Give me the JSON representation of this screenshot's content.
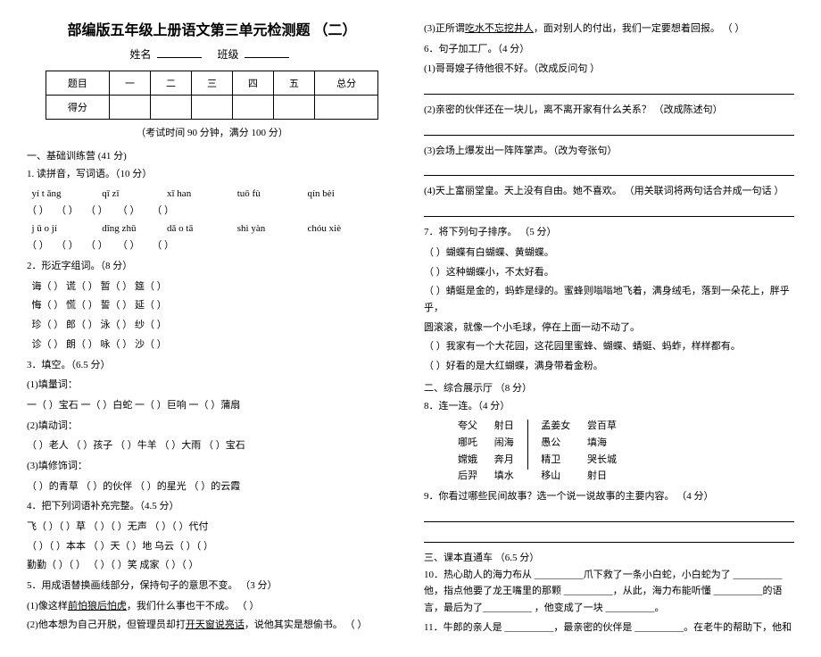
{
  "left": {
    "title": "部编版五年级上册语文第三单元检测题  （二）",
    "name_label": "姓名",
    "class_label": "班级",
    "score_headers": [
      "题目",
      "一",
      "二",
      "三",
      "四",
      "五",
      "总分"
    ],
    "score_row": "得分",
    "exam_note": "（考试时间 90 分钟，满分  100 分）",
    "sec1": "一、基础训练营  (41 分)",
    "q1": "1. 读拼音，写词语。（10 分）",
    "pinyin_r1": [
      "yí t ǎng",
      "qī zǐ",
      "xī han",
      "tuō fù",
      "qín bèi"
    ],
    "pinyin_r2": [
      "j ǔ o jí",
      "dīng zhǔ",
      "dǎ o tā",
      "shì yàn",
      "chóu  xiè"
    ],
    "q2": "2．形近字组词。（8 分）",
    "q2_rows": [
      [
        "诲（",
        "）",
        "谎（",
        "）",
        "暂（",
        "）",
        "筵（",
        "）"
      ],
      [
        "悔（",
        "）",
        "慌（",
        "）",
        "誓（",
        "）",
        "延（",
        "）"
      ],
      [
        "珍（",
        "）",
        "郎（",
        "）",
        "泳（",
        "）",
        "纱（",
        "）"
      ],
      [
        "诊（",
        "）",
        "朗（",
        "）",
        "咏（",
        "）",
        "沙（",
        "）"
      ]
    ],
    "q3": "3．填空。（6.5 分）",
    "q3_1": "(1)填量词：",
    "q3_1_row": "一（        ）宝石        一（        ）白蛇        一（        ）巨响        一（        ）蒲扇",
    "q3_2": "(2)填动词：",
    "q3_2_row": "（        ）老人        （        ）孩子        （        ）牛羊        （        ）大雨     （        ）宝石",
    "q3_3": "(3)填修饰词：",
    "q3_3_row": "（        ）的青草        （        ）的伙伴        （        ）的星光        （        ）的云霞",
    "q4": "4．把下列词语补充完整。（4.5 分）",
    "q4_r1": "飞（        ）（        ）草           （        ）（        ）无声           （        ）（        ）代付",
    "q4_r2": "（        ）（        ）本本        （        ）天（        ）地        乌云（        ）（        ）",
    "q4_r3": "勤勤（        ）（        ）        （        ）（        ）笑           成家（        ）（        ）",
    "q5": "5．用成语替换画线部分，保持句子的意思不变。  （3 分）",
    "q5_1": "(1)像这样<span class=\"u\">前怕狼后怕虎</span>，我们什么事也干不成。                    （        ）",
    "q5_2": "(2)他本想为自己开脱，但管理员却打<span class=\"u\">开天窗说亮话</span>，说他其实是想偷书。   （        ）"
  },
  "right": {
    "q5_3": "(3)正所谓<span class=\"u\">吃水不忘挖井人</span>，面对别人的付出，我们一定要想着回报。        （        ）",
    "q6": "6．句子加工厂。（4 分）",
    "q6_1": "(1)哥哥嫂子待他很不好。（改成反问句  ）",
    "q6_2": "(2)亲密的伙伴还在一块儿，离不离开家有什么关系？    （改成陈述句）",
    "q6_3": "(3)会场上爆发出一阵阵掌声。（改为夸张句）",
    "q6_4": "(4)天上富丽堂皇。天上没有自由。她不喜欢。  （用关联词将两句话合并成一句话    ）",
    "q7": "7．将下列句子排序。  （5 分）",
    "q7_1": "（    ）蝴蝶有白蝴蝶、黄蝴蝶。",
    "q7_2": "（    ）这种蝴蝶小，不太好看。",
    "q7_3": "（    ）蜻蜓是金的，蚂蚱是绿的。蜜蜂则嗡嗡地飞着，满身绒毛，落到一朵花上，胖乎乎，",
    "q7_3b": "圆滚滚，就像一个小毛球，停在上面一动不动了。",
    "q7_4": "（    ）我家有一个大花园，这花园里蜜蜂、蝴蝶、蜻蜓、蚂蚱，样样都有。",
    "q7_5": "（    ）好看的是大红蝴蝶，满身带着金粉。",
    "sec2": "二、综合展示厅  （8 分）",
    "q8": "8．连一连。（4 分）",
    "conn": {
      "c1": [
        "夸父",
        "哪吒",
        "嫦娥",
        "后羿"
      ],
      "c2": [
        "射日",
        "闹海",
        "奔月",
        "填水"
      ],
      "c3": [
        "孟姜女",
        "愚公",
        "精卫",
        "移山"
      ],
      "c4": [
        "尝百草",
        "填海",
        "哭长城",
        "射日"
      ]
    },
    "q9": "9．你看过哪些民间故事？选一个说一说故事的主要内容。  （4 分）",
    "sec3": "三、课本直通车  （6.5 分）",
    "q10": "10．热心助人的海力布从 __________爪下救了一条小白蛇，小白蛇为了  __________他，指点他要了龙王嘴里的那颗  __________，从此，海力布能听懂  __________的语言，最后为了__________ ，他变成了一块  __________。",
    "q11": "11．牛郎的亲人是 __________，最亲密的伙伴是  __________。在老牛的帮助下，他和"
  }
}
